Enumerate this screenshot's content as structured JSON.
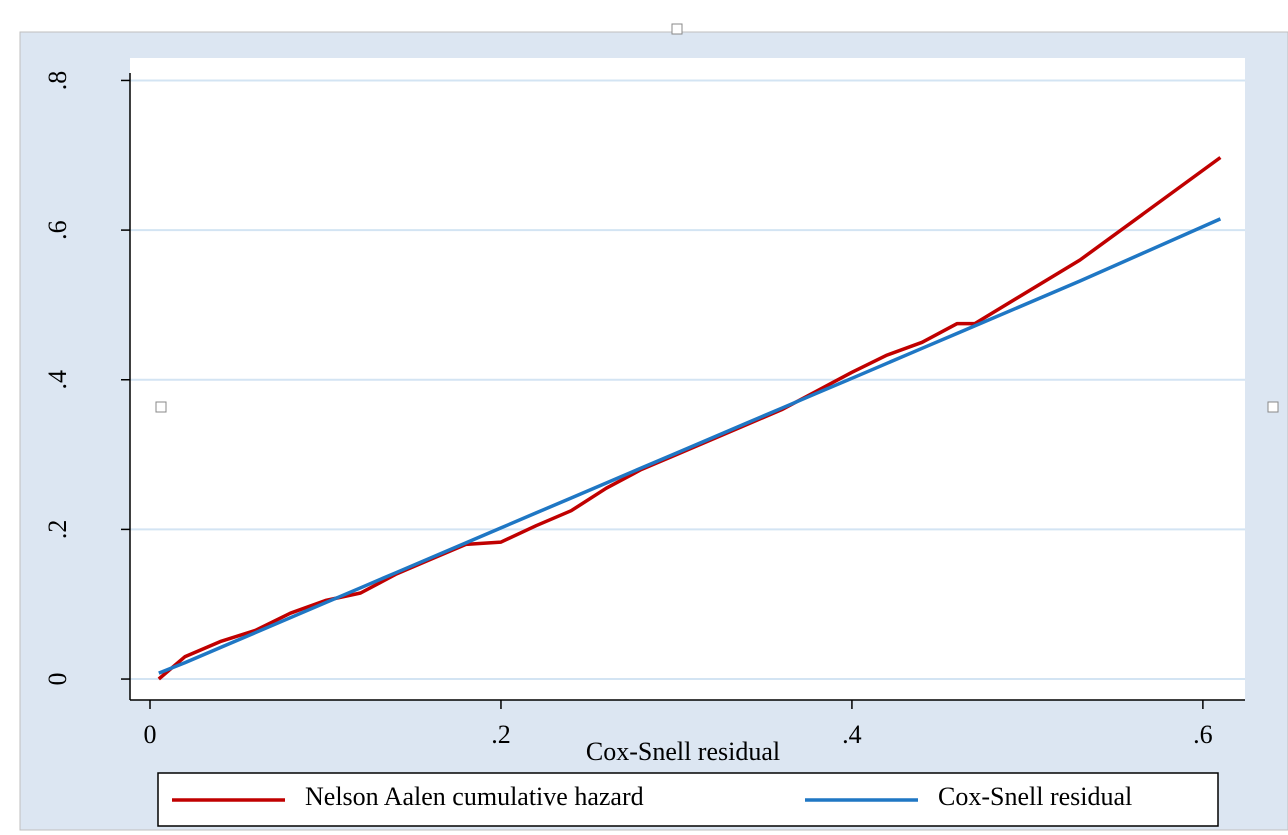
{
  "chart_data": {
    "type": "line",
    "x_label": "Cox-Snell residual",
    "x": [
      0.005,
      0.02,
      0.04,
      0.06,
      0.08,
      0.1,
      0.12,
      0.14,
      0.16,
      0.18,
      0.2,
      0.22,
      0.24,
      0.26,
      0.28,
      0.3,
      0.32,
      0.34,
      0.36,
      0.38,
      0.4,
      0.42,
      0.44,
      0.46,
      0.47,
      0.53,
      0.61
    ],
    "series": [
      {
        "name": "Nelson Aalen cumulative hazard",
        "color": "#c00000",
        "values": [
          0.0,
          0.03,
          0.05,
          0.065,
          0.088,
          0.105,
          0.115,
          0.14,
          0.16,
          0.18,
          0.183,
          0.205,
          0.225,
          0.255,
          0.28,
          0.3,
          0.32,
          0.34,
          0.36,
          0.385,
          0.41,
          0.433,
          0.45,
          0.475,
          0.475,
          0.56,
          0.697
        ]
      },
      {
        "name": "Cox-Snell residual",
        "color": "#1f77c4",
        "values": [
          0.008,
          0.022,
          0.042,
          0.062,
          0.082,
          0.102,
          0.122,
          0.142,
          0.162,
          0.182,
          0.202,
          0.222,
          0.242,
          0.262,
          0.282,
          0.302,
          0.322,
          0.342,
          0.362,
          0.382,
          0.402,
          0.422,
          0.442,
          0.462,
          0.472,
          0.532,
          0.615
        ]
      }
    ],
    "xlim": [
      -0.0114,
      0.624
    ],
    "ylim": [
      -0.028,
      0.83
    ],
    "xticks": [
      0,
      {
        "value": 0.2,
        "label": ".2"
      },
      {
        "value": 0.4,
        "label": ".4"
      },
      {
        "value": 0.6,
        "label": ".6"
      }
    ],
    "yticks": [
      0,
      {
        "value": 0.2,
        "label": ".2"
      },
      {
        "value": 0.4,
        "label": ".4"
      },
      {
        "value": 0.6,
        "label": ".6"
      },
      {
        "value": 0.8,
        "label": ".8"
      }
    ],
    "grid": true
  }
}
